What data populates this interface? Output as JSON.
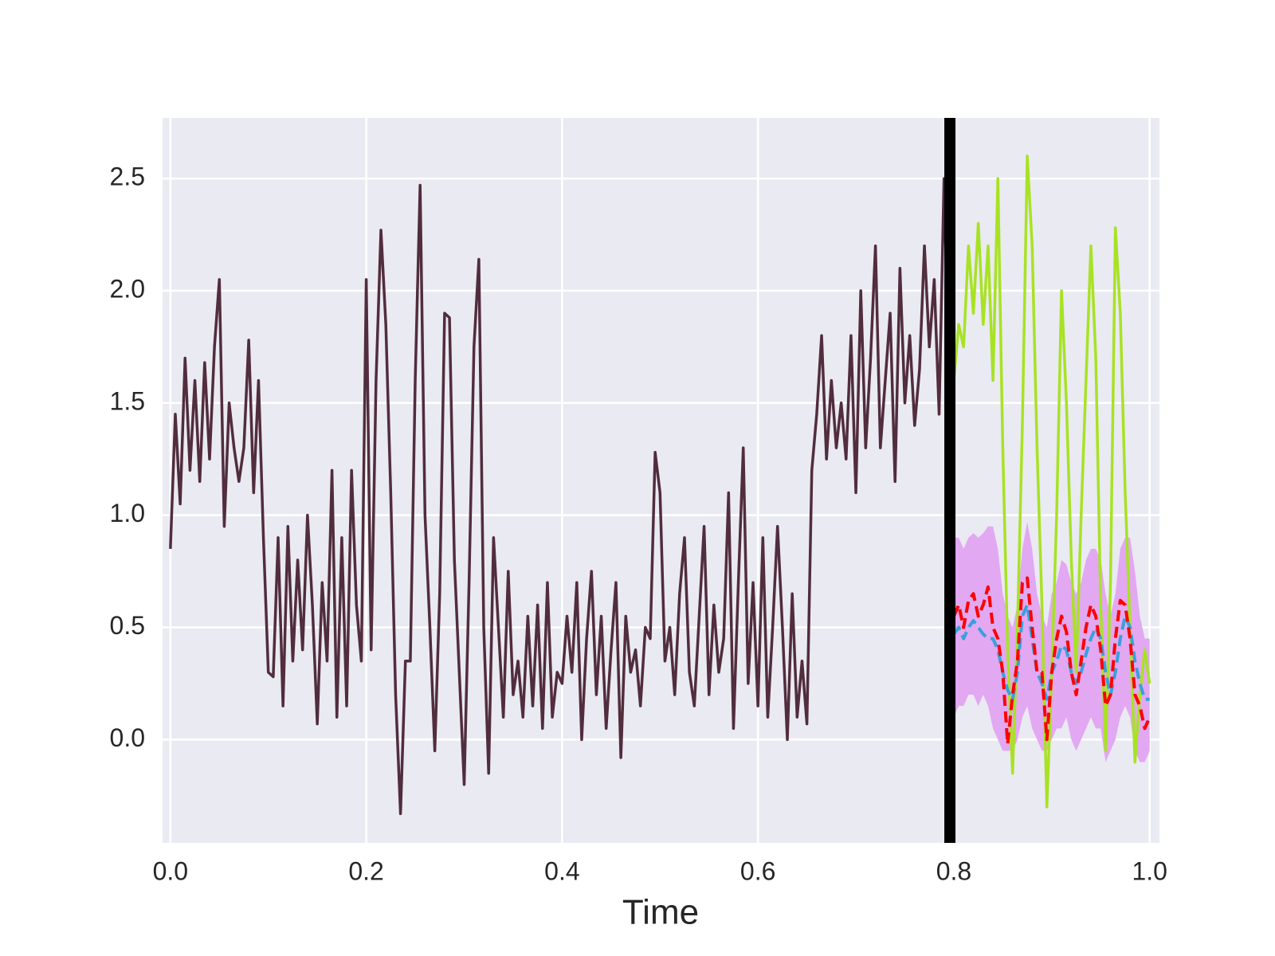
{
  "chart_data": {
    "type": "line",
    "xlabel": "Time",
    "xlim": [
      -0.008,
      1.01
    ],
    "ylim": [
      -0.46,
      2.77
    ],
    "xticks": [
      {
        "value": 0,
        "label": "0.0"
      },
      0.2,
      0.4,
      0.6,
      0.8,
      {
        "value": 1,
        "label": "1.0"
      }
    ],
    "yticks": [
      {
        "value": 0,
        "label": "0.0"
      },
      0.5,
      {
        "value": 1,
        "label": "1.0"
      },
      1.5,
      {
        "value": 2,
        "label": "2.0"
      },
      2.5
    ],
    "grid": true,
    "background": "#eaeaf2",
    "vline": {
      "x": 0.796,
      "color": "#000000"
    },
    "band": {
      "color": "#e2a8f2",
      "x": [
        0.8,
        0.805,
        0.81,
        0.815,
        0.82,
        0.825,
        0.83,
        0.835,
        0.84,
        0.845,
        0.85,
        0.855,
        0.86,
        0.865,
        0.87,
        0.875,
        0.88,
        0.885,
        0.89,
        0.895,
        0.9,
        0.905,
        0.91,
        0.915,
        0.92,
        0.925,
        0.93,
        0.935,
        0.94,
        0.945,
        0.95,
        0.955,
        0.96,
        0.965,
        0.97,
        0.975,
        0.98,
        0.985,
        0.99,
        0.995,
        1.0
      ],
      "lower": [
        0.1,
        0.15,
        0.15,
        0.2,
        0.2,
        0.15,
        0.2,
        0.15,
        0.05,
        0.0,
        -0.05,
        -0.05,
        -0.05,
        0.0,
        0.1,
        0.15,
        0.05,
        0.0,
        -0.05,
        -0.05,
        0.0,
        0.05,
        0.05,
        0.1,
        0.0,
        -0.05,
        0.0,
        0.05,
        0.1,
        0.05,
        0.05,
        -0.1,
        -0.05,
        0.0,
        0.1,
        0.15,
        0.1,
        -0.05,
        -0.1,
        -0.1,
        -0.05
      ],
      "upper": [
        0.9,
        0.9,
        0.85,
        0.9,
        0.92,
        0.9,
        0.92,
        0.95,
        0.95,
        0.85,
        0.65,
        0.55,
        0.5,
        0.6,
        0.85,
        0.97,
        0.85,
        0.65,
        0.55,
        0.5,
        0.65,
        0.7,
        0.8,
        0.78,
        0.7,
        0.65,
        0.7,
        0.8,
        0.85,
        0.85,
        0.8,
        0.65,
        0.55,
        0.65,
        0.85,
        0.9,
        0.9,
        0.75,
        0.55,
        0.45,
        0.45
      ]
    },
    "series": [
      {
        "color": "#512d3d",
        "dash": false,
        "x": [
          0,
          0.005,
          0.01,
          0.015,
          0.02,
          0.025,
          0.03,
          0.035,
          0.04,
          0.045,
          0.05,
          0.055,
          0.06,
          0.065,
          0.07,
          0.075,
          0.08,
          0.085,
          0.09,
          0.095,
          0.1,
          0.105,
          0.11,
          0.115,
          0.12,
          0.125,
          0.13,
          0.135,
          0.14,
          0.145,
          0.15,
          0.155,
          0.16,
          0.165,
          0.17,
          0.175,
          0.18,
          0.185,
          0.19,
          0.195,
          0.2,
          0.205,
          0.21,
          0.215,
          0.22,
          0.225,
          0.23,
          0.235,
          0.24,
          0.245,
          0.25,
          0.255,
          0.26,
          0.265,
          0.27,
          0.275,
          0.28,
          0.285,
          0.29,
          0.295,
          0.3,
          0.305,
          0.31,
          0.315,
          0.32,
          0.325,
          0.33,
          0.335,
          0.34,
          0.345,
          0.35,
          0.355,
          0.36,
          0.365,
          0.37,
          0.375,
          0.38,
          0.385,
          0.39,
          0.395,
          0.4,
          0.405,
          0.41,
          0.415,
          0.42,
          0.425,
          0.43,
          0.435,
          0.44,
          0.445,
          0.45,
          0.455,
          0.46,
          0.465,
          0.47,
          0.475,
          0.48,
          0.485,
          0.49,
          0.495,
          0.5,
          0.505,
          0.51,
          0.515,
          0.52,
          0.525,
          0.53,
          0.535,
          0.54,
          0.545,
          0.55,
          0.555,
          0.56,
          0.565,
          0.57,
          0.575,
          0.58,
          0.585,
          0.59,
          0.595,
          0.6,
          0.605,
          0.61,
          0.615,
          0.62,
          0.625,
          0.63,
          0.635,
          0.64,
          0.645,
          0.65,
          0.655,
          0.66,
          0.665,
          0.67,
          0.675,
          0.68,
          0.685,
          0.69,
          0.695,
          0.7,
          0.705,
          0.71,
          0.715,
          0.72,
          0.725,
          0.73,
          0.735,
          0.74,
          0.745,
          0.75,
          0.755,
          0.76,
          0.765,
          0.77,
          0.775,
          0.78,
          0.785,
          0.79,
          0.795
        ],
        "values": [
          0.85,
          1.45,
          1.05,
          1.7,
          1.2,
          1.6,
          1.15,
          1.68,
          1.25,
          1.75,
          2.05,
          0.95,
          1.5,
          1.3,
          1.15,
          1.3,
          1.78,
          1.1,
          1.6,
          0.9,
          0.3,
          0.28,
          0.9,
          0.15,
          0.95,
          0.35,
          0.8,
          0.4,
          1.0,
          0.6,
          0.07,
          0.7,
          0.35,
          1.2,
          0.1,
          0.9,
          0.15,
          1.2,
          0.6,
          0.35,
          2.05,
          0.4,
          1.6,
          2.27,
          1.85,
          1.1,
          0.2,
          -0.33,
          0.35,
          0.35,
          1.6,
          2.47,
          1.0,
          0.5,
          -0.05,
          0.65,
          1.9,
          1.88,
          0.8,
          0.3,
          -0.2,
          0.7,
          1.75,
          2.14,
          0.5,
          -0.15,
          0.9,
          0.5,
          0.1,
          0.75,
          0.2,
          0.35,
          0.1,
          0.55,
          0.15,
          0.6,
          0.05,
          0.7,
          0.1,
          0.3,
          0.25,
          0.55,
          0.3,
          0.7,
          0.0,
          0.45,
          0.75,
          0.2,
          0.55,
          0.05,
          0.4,
          0.7,
          -0.08,
          0.55,
          0.3,
          0.4,
          0.15,
          0.5,
          0.45,
          1.28,
          1.1,
          0.35,
          0.5,
          0.2,
          0.65,
          0.9,
          0.3,
          0.15,
          0.55,
          0.95,
          0.2,
          0.6,
          0.3,
          0.45,
          1.1,
          0.05,
          0.7,
          1.3,
          0.25,
          0.7,
          0.15,
          0.9,
          0.1,
          0.5,
          0.95,
          0.5,
          0.0,
          0.65,
          0.1,
          0.35,
          0.07,
          1.2,
          1.45,
          1.8,
          1.25,
          1.6,
          1.3,
          1.5,
          1.25,
          1.8,
          1.1,
          2.0,
          1.3,
          1.7,
          2.2,
          1.3,
          1.6,
          1.9,
          1.15,
          2.1,
          1.5,
          1.8,
          1.4,
          1.65,
          2.2,
          1.75,
          2.05,
          1.45,
          2.5,
          1.6
        ]
      },
      {
        "color": "#a8e224",
        "dash": false,
        "x": [
          0.8,
          0.805,
          0.81,
          0.815,
          0.82,
          0.825,
          0.83,
          0.835,
          0.84,
          0.845,
          0.85,
          0.855,
          0.86,
          0.865,
          0.87,
          0.875,
          0.88,
          0.885,
          0.89,
          0.895,
          0.9,
          0.905,
          0.91,
          0.915,
          0.92,
          0.925,
          0.93,
          0.935,
          0.94,
          0.945,
          0.95,
          0.955,
          0.96,
          0.965,
          0.97,
          0.975,
          0.98,
          0.985,
          0.99,
          0.995,
          1.0
        ],
        "values": [
          1.6,
          1.85,
          1.75,
          2.2,
          1.9,
          2.3,
          1.85,
          2.2,
          1.6,
          2.5,
          1.3,
          0.4,
          -0.15,
          0.5,
          1.4,
          2.6,
          2.2,
          1.3,
          0.6,
          -0.3,
          0.3,
          1.0,
          2.0,
          1.5,
          0.8,
          0.3,
          1.0,
          1.6,
          2.2,
          1.7,
          0.6,
          -0.05,
          0.7,
          2.28,
          1.9,
          1.1,
          0.5,
          -0.1,
          0.2,
          0.4,
          0.25
        ]
      },
      {
        "color": "#3a9fdc",
        "dash": true,
        "x": [
          0.8,
          0.805,
          0.81,
          0.815,
          0.82,
          0.825,
          0.83,
          0.835,
          0.84,
          0.845,
          0.85,
          0.855,
          0.86,
          0.865,
          0.87,
          0.875,
          0.88,
          0.885,
          0.89,
          0.895,
          0.9,
          0.905,
          0.91,
          0.915,
          0.92,
          0.925,
          0.93,
          0.935,
          0.94,
          0.945,
          0.95,
          0.955,
          0.96,
          0.965,
          0.97,
          0.975,
          0.98,
          0.985,
          0.99,
          0.995,
          1.0
        ],
        "values": [
          0.47,
          0.5,
          0.45,
          0.5,
          0.53,
          0.5,
          0.47,
          0.45,
          0.45,
          0.4,
          0.3,
          0.22,
          0.18,
          0.3,
          0.55,
          0.6,
          0.45,
          0.3,
          0.25,
          0.18,
          0.3,
          0.35,
          0.42,
          0.4,
          0.3,
          0.25,
          0.3,
          0.38,
          0.45,
          0.5,
          0.45,
          0.3,
          0.2,
          0.3,
          0.45,
          0.55,
          0.5,
          0.35,
          0.25,
          0.18,
          0.18
        ]
      },
      {
        "color": "#ff0000",
        "dash": true,
        "x": [
          0.8,
          0.805,
          0.81,
          0.815,
          0.82,
          0.825,
          0.83,
          0.835,
          0.84,
          0.845,
          0.85,
          0.855,
          0.86,
          0.865,
          0.87,
          0.875,
          0.88,
          0.885,
          0.89,
          0.895,
          0.9,
          0.905,
          0.91,
          0.915,
          0.92,
          0.925,
          0.93,
          0.935,
          0.94,
          0.945,
          0.95,
          0.955,
          0.96,
          0.965,
          0.97,
          0.975,
          0.98,
          0.985,
          0.99,
          0.995,
          1.0
        ],
        "values": [
          0.55,
          0.6,
          0.5,
          0.62,
          0.65,
          0.55,
          0.6,
          0.68,
          0.5,
          0.45,
          0.3,
          -0.02,
          0.2,
          0.35,
          0.7,
          0.72,
          0.5,
          0.3,
          0.3,
          0.0,
          0.3,
          0.45,
          0.55,
          0.48,
          0.3,
          0.2,
          0.35,
          0.5,
          0.6,
          0.55,
          0.4,
          0.15,
          0.2,
          0.45,
          0.62,
          0.6,
          0.45,
          0.2,
          0.15,
          0.05,
          0.1
        ]
      }
    ]
  }
}
